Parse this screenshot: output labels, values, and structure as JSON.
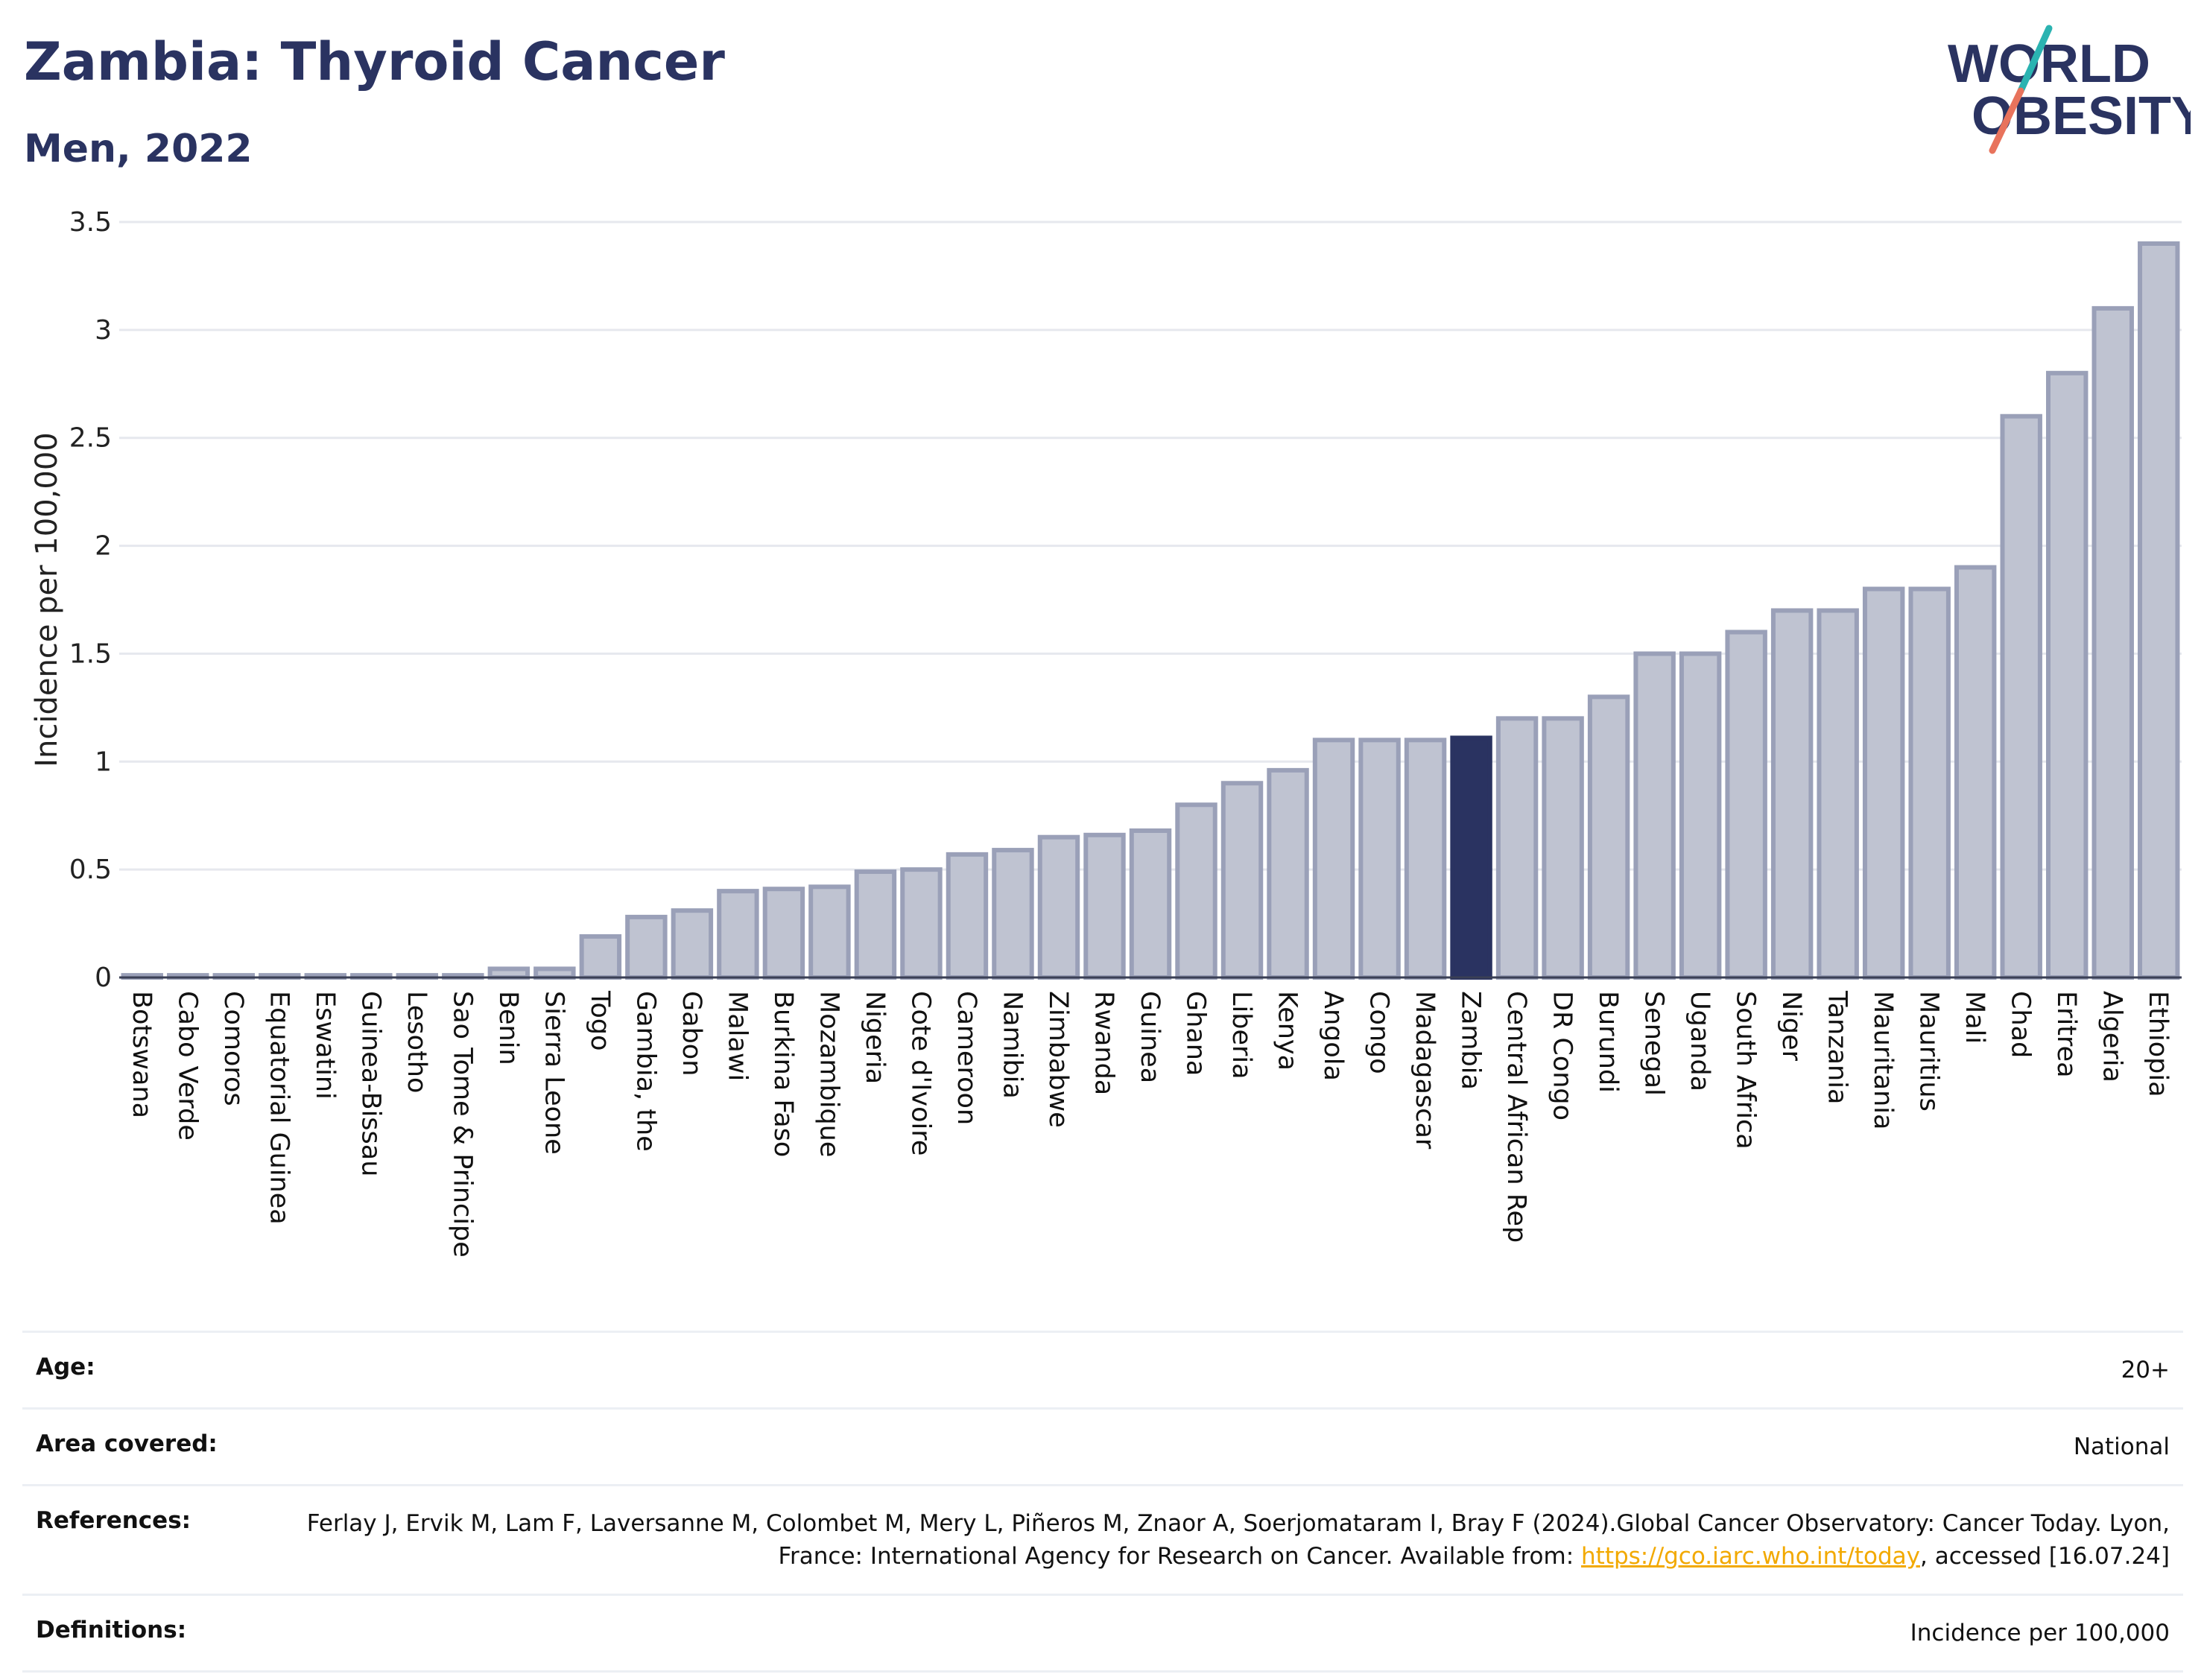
{
  "header": {
    "title": "Zambia: Thyroid Cancer",
    "subtitle": "Men, 2022"
  },
  "logo": {
    "line1": "WORLD",
    "line2": "OBESITY",
    "colors": {
      "text": "#2a3361",
      "slash_teal": "#2bb3b1",
      "slash_coral": "#e8735c"
    }
  },
  "colors": {
    "bar": "#bfc3d1",
    "bar_border": "#9aa0b8",
    "highlight": "#2a3361",
    "grid": "#e6e8ee"
  },
  "chart_data": {
    "type": "bar",
    "ylabel": "Incidence per 100,000",
    "ylim": [
      0,
      3.5
    ],
    "yticks": [
      "0",
      "0.5",
      "1",
      "1.5",
      "2",
      "2.5",
      "3",
      "3.5"
    ],
    "grid": true,
    "highlight": "Zambia",
    "categories": [
      "Botswana",
      "Cabo Verde",
      "Comoros",
      "Equatorial Guinea",
      "Eswatini",
      "Guinea-Bissau",
      "Lesotho",
      "Sao Tome & Principe",
      "Benin",
      "Sierra Leone",
      "Togo",
      "Gambia, the",
      "Gabon",
      "Malawi",
      "Burkina Faso",
      "Mozambique",
      "Nigeria",
      "Cote d'Ivoire",
      "Cameroon",
      "Namibia",
      "Zimbabwe",
      "Rwanda",
      "Guinea",
      "Ghana",
      "Liberia",
      "Kenya",
      "Angola",
      "Congo",
      "Madagascar",
      "Zambia",
      "Central African Rep",
      "DR Congo",
      "Burundi",
      "Senegal",
      "Uganda",
      "South Africa",
      "Niger",
      "Tanzania",
      "Mauritania",
      "Mauritius",
      "Mali",
      "Chad",
      "Eritrea",
      "Algeria",
      "Ethiopia"
    ],
    "values": [
      0.01,
      0.01,
      0.01,
      0.01,
      0.01,
      0.01,
      0.01,
      0.01,
      0.04,
      0.04,
      0.19,
      0.28,
      0.31,
      0.4,
      0.41,
      0.42,
      0.49,
      0.5,
      0.57,
      0.59,
      0.65,
      0.66,
      0.68,
      0.8,
      0.9,
      0.96,
      1.1,
      1.1,
      1.1,
      1.11,
      1.2,
      1.2,
      1.3,
      1.5,
      1.5,
      1.6,
      1.7,
      1.7,
      1.8,
      1.8,
      1.9,
      2.6,
      2.8,
      3.1,
      3.4
    ]
  },
  "info": {
    "age_label": "Age:",
    "age_value": "20+",
    "area_label": "Area covered:",
    "area_value": "National",
    "references_label": "References:",
    "references_text": "Ferlay J, Ervik M, Lam F, Laversanne M, Colombet M, Mery L, Piñeros M, Znaor A, Soerjomataram I, Bray F (2024).Global Cancer Observatory: Cancer Today. Lyon, France: International Agency for Research on Cancer. Available from:",
    "references_link": "https://gco.iarc.who.int/today",
    "references_after": ", accessed [16.07.24]",
    "definitions_label": "Definitions:",
    "definitions_value": "Incidence per 100,000"
  }
}
